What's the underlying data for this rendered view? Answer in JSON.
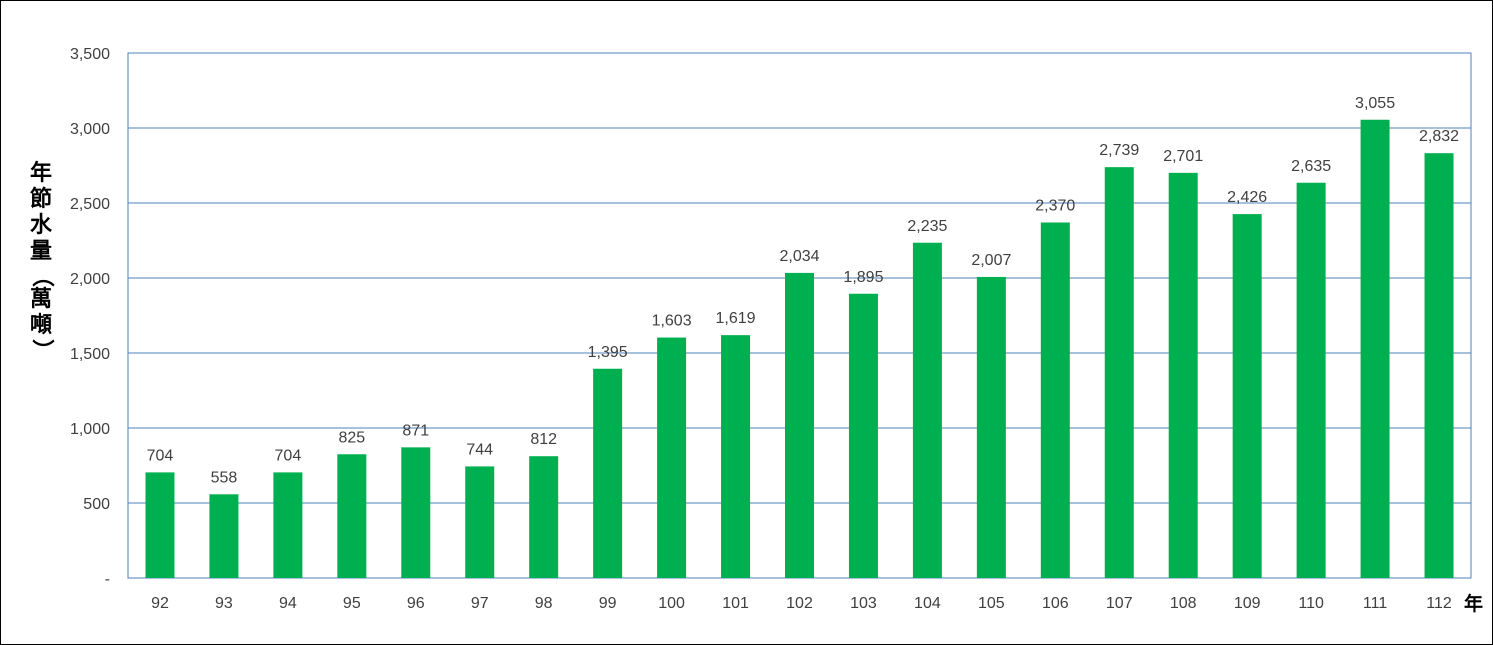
{
  "chart_data": {
    "type": "bar",
    "categories": [
      "92",
      "93",
      "94",
      "95",
      "96",
      "97",
      "98",
      "99",
      "100",
      "101",
      "102",
      "103",
      "104",
      "105",
      "106",
      "107",
      "108",
      "109",
      "110",
      "111",
      "112"
    ],
    "values": [
      704,
      558,
      704,
      825,
      871,
      744,
      812,
      1395,
      1603,
      1619,
      2034,
      1895,
      2235,
      2007,
      2370,
      2739,
      2701,
      2426,
      2635,
      3055,
      2832
    ],
    "data_labels": [
      "704",
      "558",
      "704",
      "825",
      "871",
      "744",
      "812",
      "1,395",
      "1,603",
      "1,619",
      "2,034",
      "1,895",
      "2,235",
      "2,007",
      "2,370",
      "2,739",
      "2,701",
      "2,426",
      "2,635",
      "3,055",
      "2,832"
    ],
    "ylabel": "年節水量（萬噸）",
    "xlabel": "年",
    "ylim": [
      0,
      3500
    ],
    "yticks": [
      {
        "value": 0,
        "label": "-"
      },
      {
        "value": 500,
        "label": "500"
      },
      {
        "value": 1000,
        "label": "1,000"
      },
      {
        "value": 1500,
        "label": "1,500"
      },
      {
        "value": 2000,
        "label": "2,000"
      },
      {
        "value": 2500,
        "label": "2,500"
      },
      {
        "value": 3000,
        "label": "3,000"
      },
      {
        "value": 3500,
        "label": "3,500"
      }
    ],
    "grid": true,
    "colors": {
      "bar": "#00b050",
      "grid": "#4f81bd",
      "text": "#404040"
    }
  }
}
